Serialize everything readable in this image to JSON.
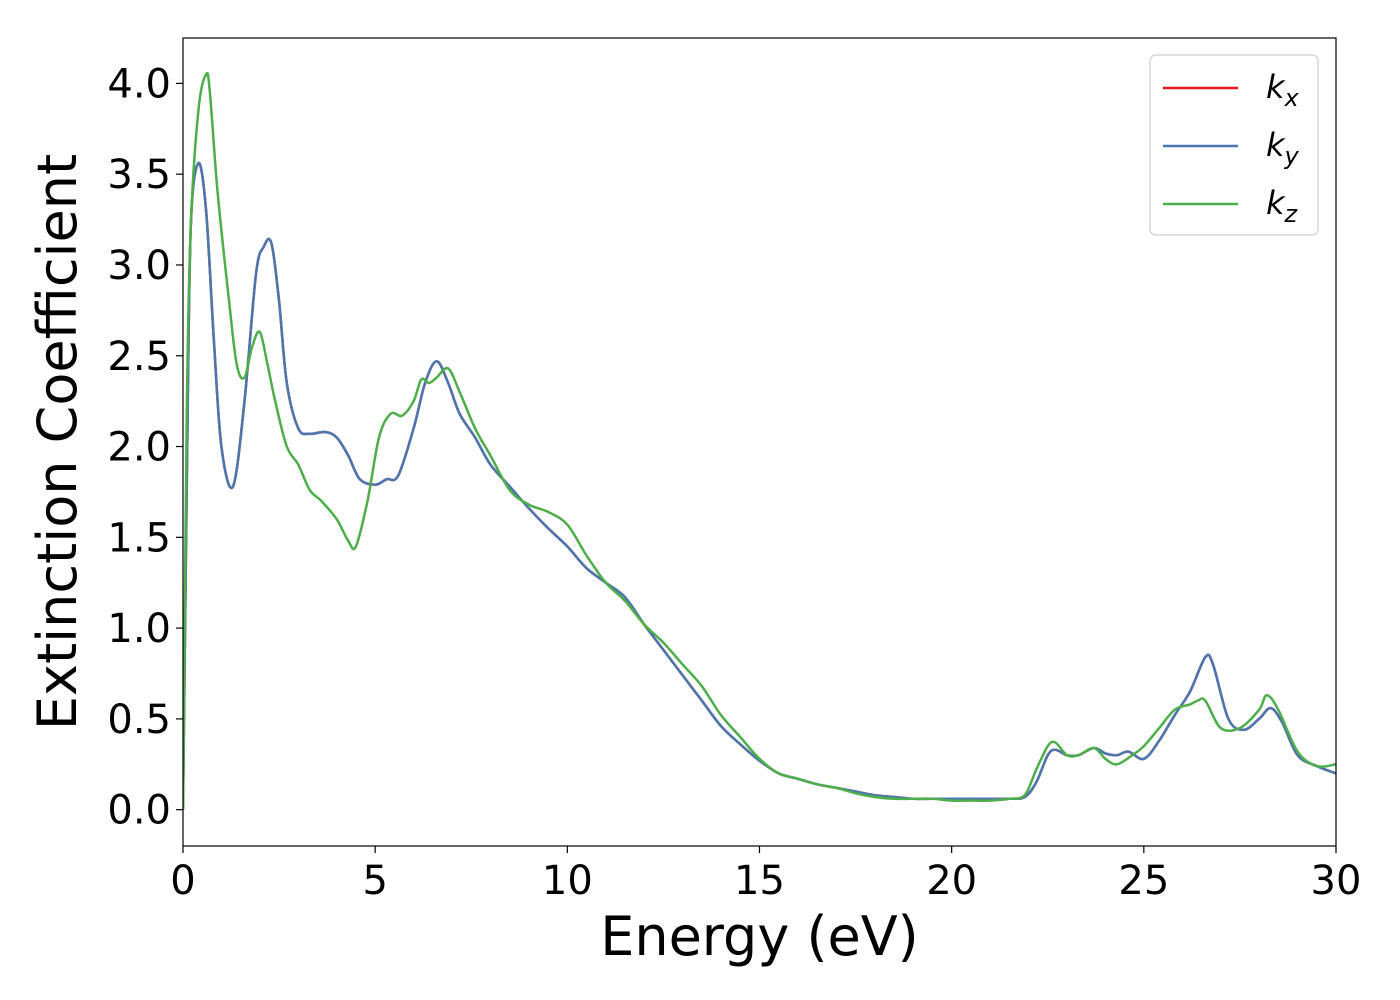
{
  "chart_data": {
    "type": "line",
    "xlabel": "Energy (eV)",
    "ylabel": "Extinction Coefficient",
    "xlim": [
      0,
      30
    ],
    "ylim": [
      -0.2,
      4.25
    ],
    "xticks": [
      0,
      5,
      10,
      15,
      20,
      25,
      30
    ],
    "yticks": [
      0.0,
      0.5,
      1.0,
      1.5,
      2.0,
      2.5,
      3.0,
      3.5,
      4.0
    ],
    "grid": false,
    "legend_position": "top-right",
    "series": [
      {
        "name": "k_x",
        "label_base": "k",
        "label_sub": "x",
        "color": "#e41a1c",
        "x": [
          0,
          0.1,
          0.2,
          0.4,
          0.6,
          0.8,
          1.0,
          1.3,
          1.6,
          1.9,
          2.1,
          2.3,
          2.5,
          2.7,
          3.0,
          3.3,
          3.7,
          4.0,
          4.3,
          4.6,
          5.0,
          5.3,
          5.6,
          6.0,
          6.3,
          6.6,
          6.9,
          7.2,
          7.6,
          8.0,
          8.5,
          9.0,
          9.5,
          10.0,
          10.5,
          11.0,
          11.5,
          12.0,
          12.5,
          13.0,
          13.5,
          14.0,
          14.5,
          15.0,
          15.5,
          16.0,
          16.5,
          17.0,
          17.5,
          18.0,
          18.5,
          19.0,
          19.5,
          20.0,
          20.5,
          21.0,
          21.5,
          21.9,
          22.2,
          22.5,
          22.7,
          23.0,
          23.3,
          23.7,
          24.0,
          24.3,
          24.6,
          25.0,
          25.4,
          25.8,
          26.2,
          26.6,
          26.8,
          27.2,
          27.6,
          28.0,
          28.3,
          28.6,
          29.0,
          29.5,
          30.0
        ],
        "y": [
          0.0,
          1.8,
          3.2,
          3.56,
          3.3,
          2.6,
          2.0,
          1.78,
          2.25,
          2.95,
          3.1,
          3.12,
          2.8,
          2.35,
          2.1,
          2.07,
          2.08,
          2.05,
          1.95,
          1.82,
          1.79,
          1.82,
          1.84,
          2.1,
          2.35,
          2.47,
          2.35,
          2.18,
          2.05,
          1.9,
          1.78,
          1.66,
          1.55,
          1.45,
          1.33,
          1.25,
          1.17,
          1.02,
          0.88,
          0.74,
          0.6,
          0.46,
          0.36,
          0.27,
          0.2,
          0.17,
          0.14,
          0.12,
          0.1,
          0.08,
          0.07,
          0.06,
          0.06,
          0.06,
          0.06,
          0.06,
          0.06,
          0.07,
          0.15,
          0.3,
          0.33,
          0.3,
          0.3,
          0.34,
          0.31,
          0.3,
          0.32,
          0.28,
          0.38,
          0.52,
          0.65,
          0.84,
          0.8,
          0.5,
          0.44,
          0.5,
          0.56,
          0.48,
          0.3,
          0.24,
          0.2
        ]
      },
      {
        "name": "k_y",
        "label_base": "k",
        "label_sub": "y",
        "color": "#4a77b0",
        "x": [
          0,
          0.1,
          0.2,
          0.4,
          0.6,
          0.8,
          1.0,
          1.3,
          1.6,
          1.9,
          2.1,
          2.3,
          2.5,
          2.7,
          3.0,
          3.3,
          3.7,
          4.0,
          4.3,
          4.6,
          5.0,
          5.3,
          5.6,
          6.0,
          6.3,
          6.6,
          6.9,
          7.2,
          7.6,
          8.0,
          8.5,
          9.0,
          9.5,
          10.0,
          10.5,
          11.0,
          11.5,
          12.0,
          12.5,
          13.0,
          13.5,
          14.0,
          14.5,
          15.0,
          15.5,
          16.0,
          16.5,
          17.0,
          17.5,
          18.0,
          18.5,
          19.0,
          19.5,
          20.0,
          20.5,
          21.0,
          21.5,
          21.9,
          22.2,
          22.5,
          22.7,
          23.0,
          23.3,
          23.7,
          24.0,
          24.3,
          24.6,
          25.0,
          25.4,
          25.8,
          26.2,
          26.6,
          26.8,
          27.2,
          27.6,
          28.0,
          28.3,
          28.6,
          29.0,
          29.5,
          30.0
        ],
        "y": [
          0.0,
          1.8,
          3.2,
          3.56,
          3.3,
          2.6,
          2.0,
          1.78,
          2.25,
          2.95,
          3.1,
          3.12,
          2.8,
          2.35,
          2.1,
          2.07,
          2.08,
          2.05,
          1.95,
          1.82,
          1.79,
          1.82,
          1.84,
          2.1,
          2.35,
          2.47,
          2.35,
          2.18,
          2.05,
          1.9,
          1.78,
          1.66,
          1.55,
          1.45,
          1.33,
          1.25,
          1.17,
          1.02,
          0.88,
          0.74,
          0.6,
          0.46,
          0.36,
          0.27,
          0.2,
          0.17,
          0.14,
          0.12,
          0.1,
          0.08,
          0.07,
          0.06,
          0.06,
          0.06,
          0.06,
          0.06,
          0.06,
          0.07,
          0.15,
          0.3,
          0.33,
          0.3,
          0.3,
          0.34,
          0.31,
          0.3,
          0.32,
          0.28,
          0.38,
          0.52,
          0.65,
          0.84,
          0.8,
          0.5,
          0.44,
          0.5,
          0.56,
          0.48,
          0.3,
          0.24,
          0.2
        ]
      },
      {
        "name": "k_z",
        "label_base": "k",
        "label_sub": "z",
        "color": "#4daf4a",
        "x": [
          0,
          0.1,
          0.2,
          0.4,
          0.6,
          0.7,
          0.9,
          1.2,
          1.4,
          1.6,
          1.8,
          2.0,
          2.2,
          2.4,
          2.7,
          3.0,
          3.3,
          3.6,
          4.0,
          4.3,
          4.5,
          4.8,
          5.1,
          5.4,
          5.7,
          6.0,
          6.2,
          6.4,
          6.6,
          6.9,
          7.2,
          7.6,
          8.0,
          8.5,
          9.0,
          9.5,
          10.0,
          10.5,
          11.0,
          11.5,
          12.0,
          12.5,
          13.0,
          13.5,
          14.0,
          14.5,
          15.0,
          15.5,
          16.0,
          16.5,
          17.0,
          17.5,
          18.0,
          18.5,
          19.0,
          19.5,
          20.0,
          20.5,
          21.0,
          21.5,
          21.9,
          22.2,
          22.5,
          22.7,
          23.0,
          23.3,
          23.7,
          24.0,
          24.3,
          24.7,
          25.0,
          25.4,
          25.8,
          26.2,
          26.4,
          26.6,
          27.0,
          27.5,
          28.0,
          28.2,
          28.5,
          29.0,
          29.5,
          30.0
        ],
        "y": [
          0.0,
          2.2,
          3.2,
          3.85,
          4.05,
          3.95,
          3.4,
          2.8,
          2.45,
          2.38,
          2.55,
          2.63,
          2.45,
          2.25,
          2.0,
          1.9,
          1.76,
          1.7,
          1.6,
          1.48,
          1.45,
          1.7,
          2.05,
          2.18,
          2.17,
          2.25,
          2.37,
          2.35,
          2.38,
          2.43,
          2.3,
          2.1,
          1.95,
          1.76,
          1.68,
          1.64,
          1.57,
          1.4,
          1.25,
          1.15,
          1.02,
          0.92,
          0.8,
          0.68,
          0.52,
          0.4,
          0.28,
          0.2,
          0.17,
          0.14,
          0.12,
          0.09,
          0.07,
          0.06,
          0.06,
          0.06,
          0.05,
          0.05,
          0.05,
          0.06,
          0.08,
          0.22,
          0.35,
          0.37,
          0.3,
          0.3,
          0.34,
          0.28,
          0.25,
          0.3,
          0.35,
          0.45,
          0.55,
          0.58,
          0.6,
          0.6,
          0.45,
          0.45,
          0.55,
          0.63,
          0.55,
          0.32,
          0.24,
          0.25
        ]
      }
    ]
  }
}
